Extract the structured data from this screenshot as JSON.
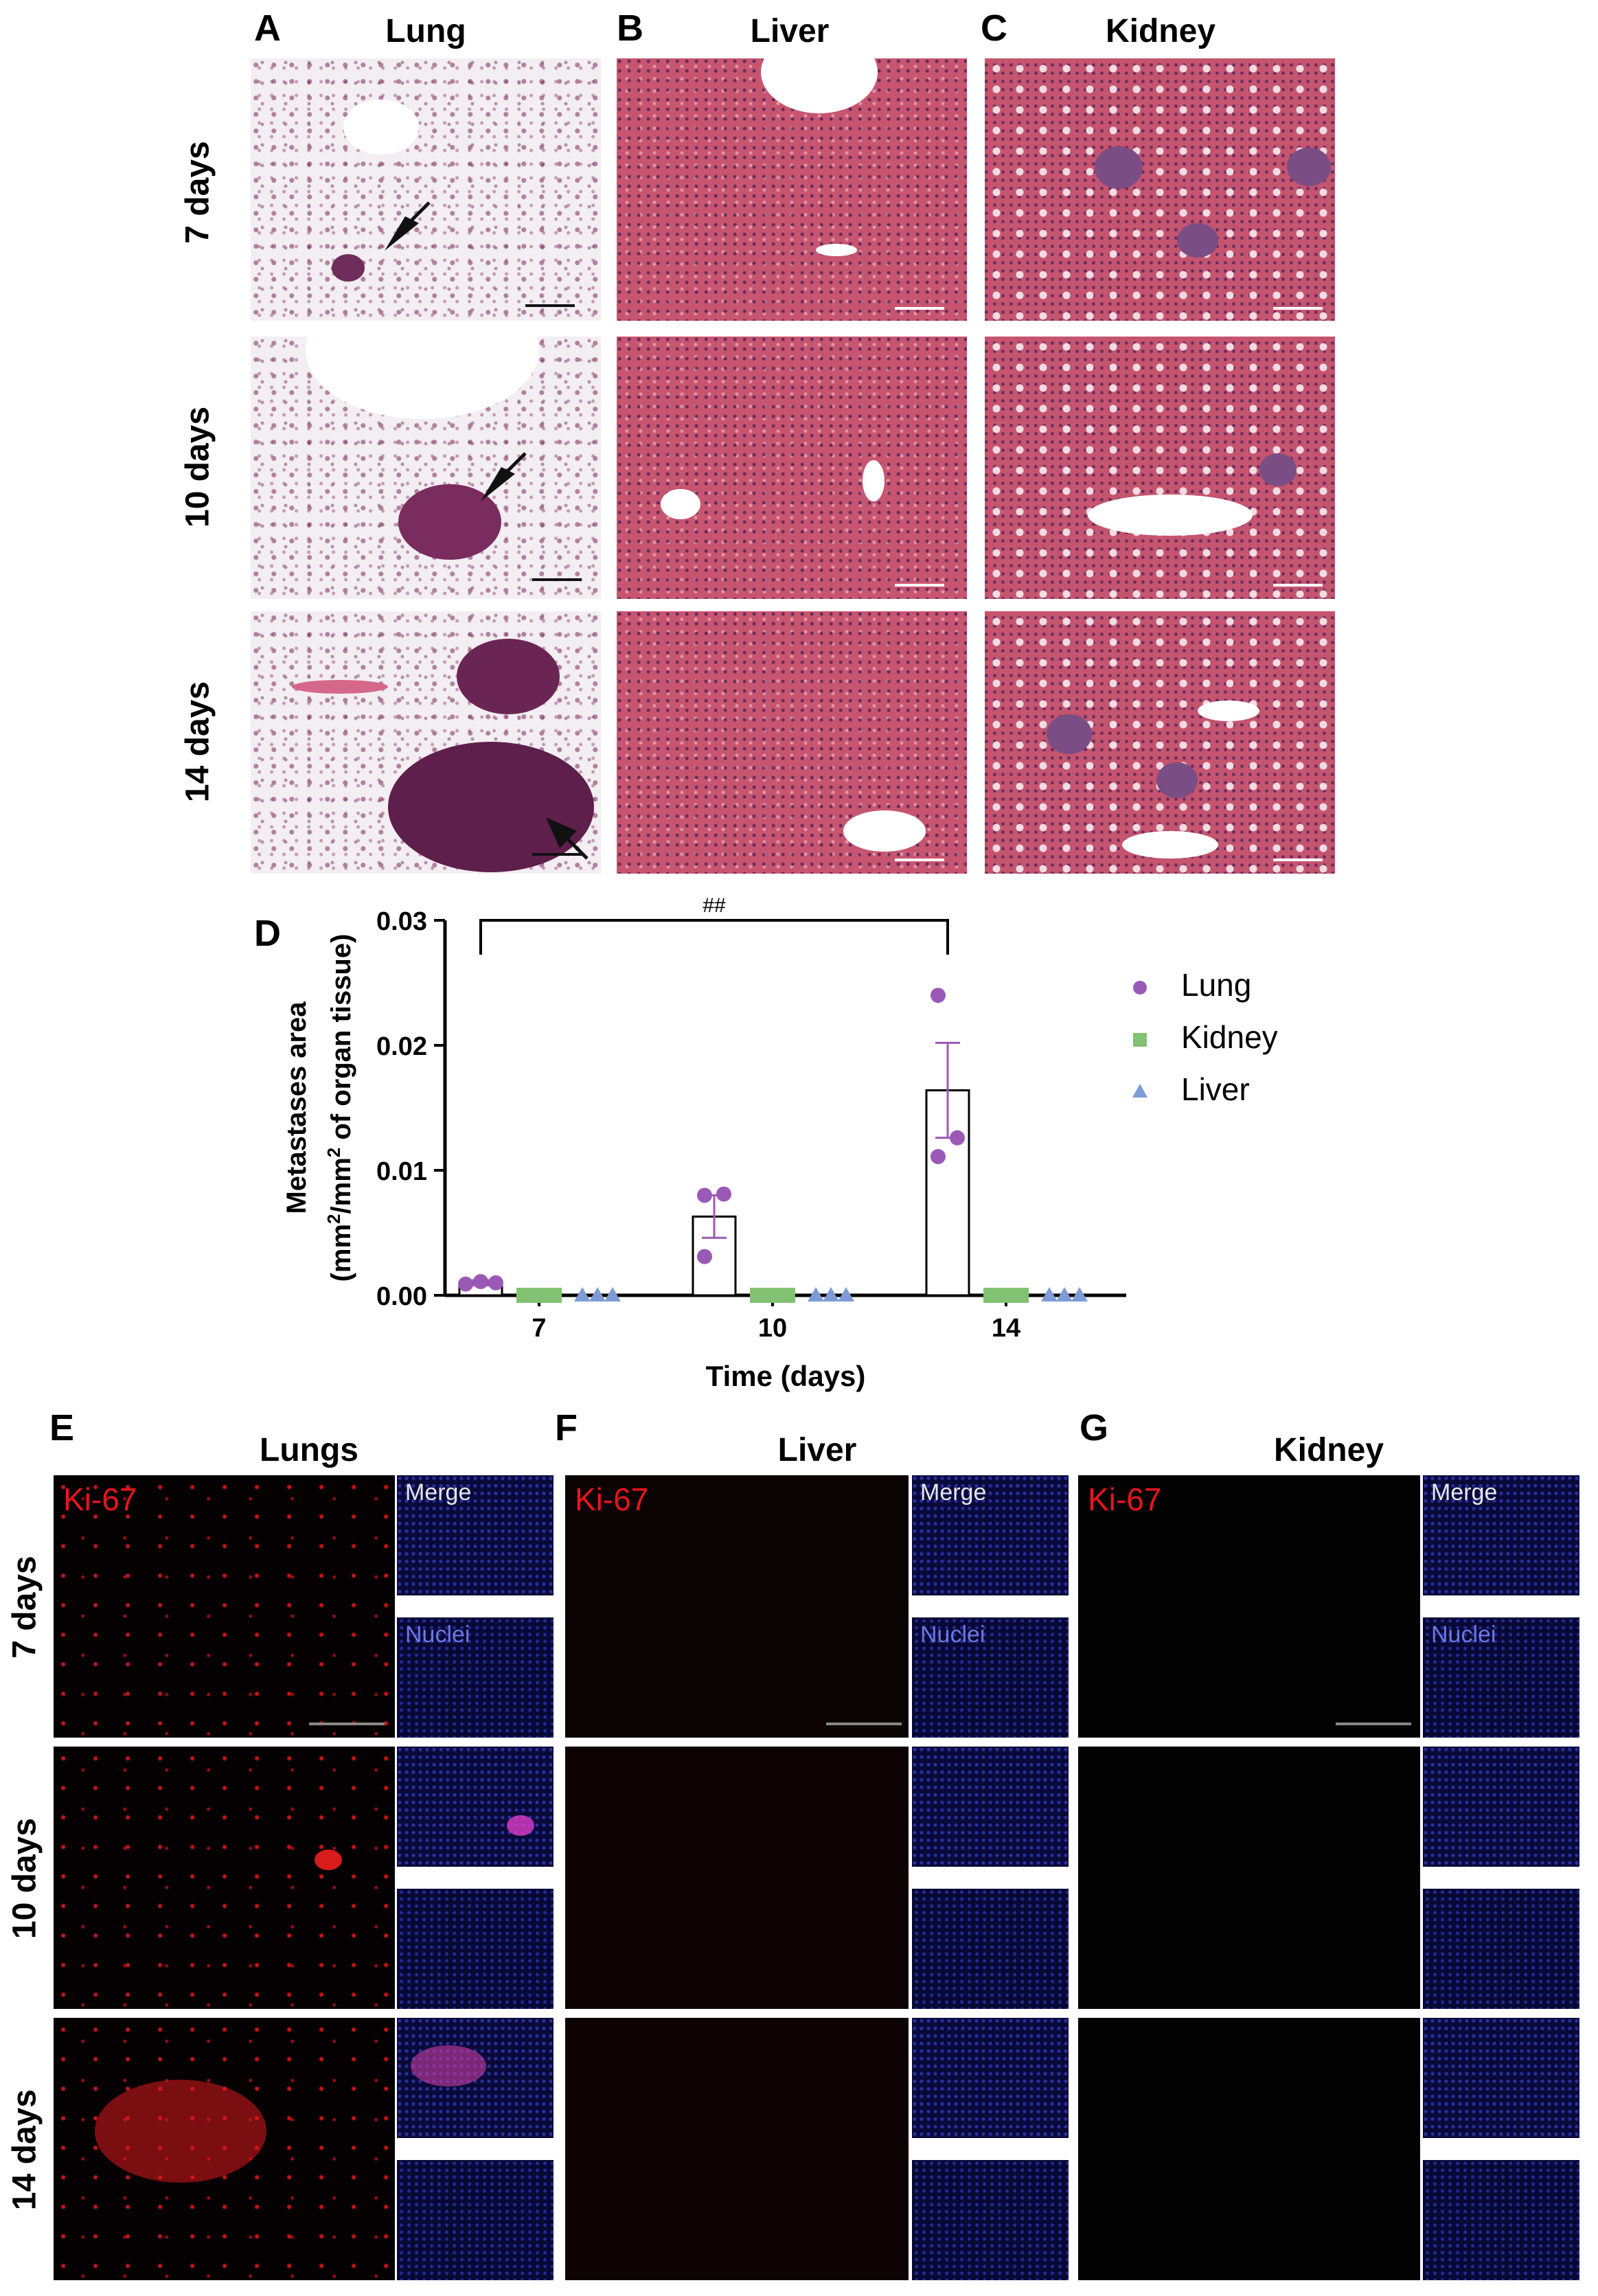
{
  "panels_top": {
    "a_label": "A",
    "a_title": "Lung",
    "b_label": "B",
    "b_title": "Liver",
    "c_label": "C",
    "c_title": "Kidney",
    "rows": [
      "7 days",
      "10 days",
      "14 days"
    ]
  },
  "chart_panel": {
    "label": "D",
    "significance": "##"
  },
  "chart_data": {
    "type": "bar",
    "categories": [
      "7",
      "10",
      "14"
    ],
    "xlabel": "Time (days)",
    "ylabel_line1": "Metastases area",
    "ylabel_line2_parts": [
      "(mm",
      "2",
      "/mm",
      "2",
      " of organ tissue)"
    ],
    "ylim": [
      0,
      0.03
    ],
    "yticks": [
      "0.00",
      "0.01",
      "0.02",
      "0.03"
    ],
    "ytick_values": [
      0,
      0.01,
      0.02,
      0.03
    ],
    "legend_position": "right",
    "series": [
      {
        "name": "Lung",
        "color": "#9b59b6",
        "marker": "circle",
        "means": [
          0.001,
          0.0063,
          0.0164
        ],
        "sem": [
          0.0002,
          0.0017,
          0.0038
        ],
        "points": [
          [
            0.0009,
            0.0011,
            0.001
          ],
          [
            0.008,
            0.0081,
            0.0031
          ],
          [
            0.024,
            0.0126,
            0.0111
          ]
        ]
      },
      {
        "name": "Kidney",
        "color": "#82c272",
        "marker": "square",
        "means": [
          0,
          0,
          0
        ],
        "sem": [
          0,
          0,
          0
        ],
        "points": [
          [
            0,
            0,
            0
          ],
          [
            0,
            0,
            0
          ],
          [
            0,
            0,
            0
          ]
        ]
      },
      {
        "name": "Liver",
        "color": "#7d9bd4",
        "marker": "triangle",
        "means": [
          0,
          0,
          0
        ],
        "sem": [
          0,
          0,
          0
        ],
        "points": [
          [
            0,
            0,
            0
          ],
          [
            0,
            0,
            0
          ],
          [
            0,
            0,
            0
          ]
        ]
      }
    ]
  },
  "panels_bottom": {
    "e_label": "E",
    "e_title": "Lungs",
    "f_label": "F",
    "f_title": "Liver",
    "g_label": "G",
    "g_title": "Kidney",
    "rows": [
      "7 days",
      "10 days",
      "14 days"
    ],
    "ki67": "Ki-67",
    "merge": "Merge",
    "nuclei": "Nuclei"
  }
}
